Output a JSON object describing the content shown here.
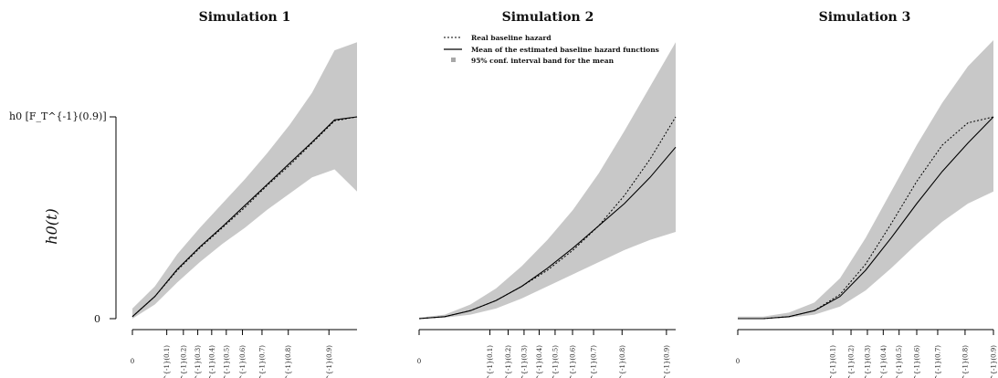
{
  "chart_data": {
    "type": "line",
    "ylabel": "h0(t)",
    "y_ticks": [
      "0",
      "h0 [F_T^{-1}(0.9)]"
    ],
    "x_ticks": [
      "0",
      "F_T^{-1}(0.1)",
      "F_T^{-1}(0.2)",
      "F_T^{-1}(0.3)",
      "F_T^{-1}(0.4)",
      "F_T^{-1}(0.5)",
      "F_T^{-1}(0.6)",
      "F_T^{-1}(0.7)",
      "F_T^{-1}(0.8)",
      "F_T^{-1}(0.9)"
    ],
    "legend": {
      "position": "top-center",
      "entries": [
        "Real baseline hazard",
        "Mean of the estimated baseline hazard functions",
        "95% conf. interval band for the mean"
      ]
    },
    "panels": [
      {
        "title": "Simulation 1",
        "x_positions": [
          0,
          0.153,
          0.227,
          0.291,
          0.353,
          0.418,
          0.49,
          0.577,
          0.694,
          0.875
        ],
        "x": [
          0,
          0.1,
          0.2,
          0.3,
          0.4,
          0.5,
          0.6,
          0.7,
          0.8,
          0.9,
          1.0
        ],
        "real": [
          0.01,
          0.11,
          0.24,
          0.35,
          0.45,
          0.55,
          0.66,
          0.76,
          0.87,
          0.98,
          1.0
        ],
        "mean": [
          0.01,
          0.11,
          0.245,
          0.355,
          0.455,
          0.56,
          0.665,
          0.77,
          0.875,
          0.985,
          1.0
        ],
        "lower": [
          0.0,
          0.07,
          0.18,
          0.28,
          0.37,
          0.45,
          0.54,
          0.62,
          0.7,
          0.74,
          0.63
        ],
        "upper": [
          0.05,
          0.16,
          0.32,
          0.45,
          0.57,
          0.69,
          0.82,
          0.96,
          1.12,
          1.33,
          1.37
        ]
      },
      {
        "title": "Simulation 2",
        "x_positions": [
          0,
          0.276,
          0.347,
          0.409,
          0.468,
          0.53,
          0.598,
          0.68,
          0.791,
          0.964
        ],
        "x": [
          0,
          0.1,
          0.2,
          0.3,
          0.4,
          0.5,
          0.6,
          0.7,
          0.8,
          0.9,
          1.0
        ],
        "real": [
          0.0,
          0.01,
          0.04,
          0.09,
          0.16,
          0.24,
          0.34,
          0.46,
          0.61,
          0.79,
          1.0
        ],
        "mean": [
          0.0,
          0.01,
          0.04,
          0.09,
          0.16,
          0.25,
          0.35,
          0.46,
          0.57,
          0.7,
          0.85
        ],
        "lower": [
          0.0,
          0.005,
          0.02,
          0.05,
          0.1,
          0.16,
          0.22,
          0.28,
          0.34,
          0.39,
          0.43
        ],
        "upper": [
          0.005,
          0.02,
          0.07,
          0.15,
          0.26,
          0.39,
          0.54,
          0.72,
          0.93,
          1.15,
          1.37
        ]
      },
      {
        "title": "Simulation 3",
        "x_positions": [
          0,
          0.372,
          0.443,
          0.507,
          0.569,
          0.631,
          0.7,
          0.782,
          0.889,
          1.0
        ],
        "x": [
          0,
          0.1,
          0.2,
          0.3,
          0.4,
          0.5,
          0.6,
          0.7,
          0.8,
          0.9,
          1.0
        ],
        "real": [
          0.0,
          0.0,
          0.01,
          0.04,
          0.12,
          0.27,
          0.47,
          0.68,
          0.86,
          0.97,
          1.0
        ],
        "mean": [
          0.0,
          0.0,
          0.01,
          0.04,
          0.11,
          0.24,
          0.4,
          0.57,
          0.73,
          0.87,
          1.0
        ],
        "lower": [
          0.0,
          0.0,
          0.005,
          0.02,
          0.06,
          0.14,
          0.25,
          0.37,
          0.48,
          0.57,
          0.63
        ],
        "upper": [
          0.01,
          0.01,
          0.03,
          0.08,
          0.2,
          0.4,
          0.63,
          0.86,
          1.07,
          1.25,
          1.38
        ]
      }
    ]
  }
}
